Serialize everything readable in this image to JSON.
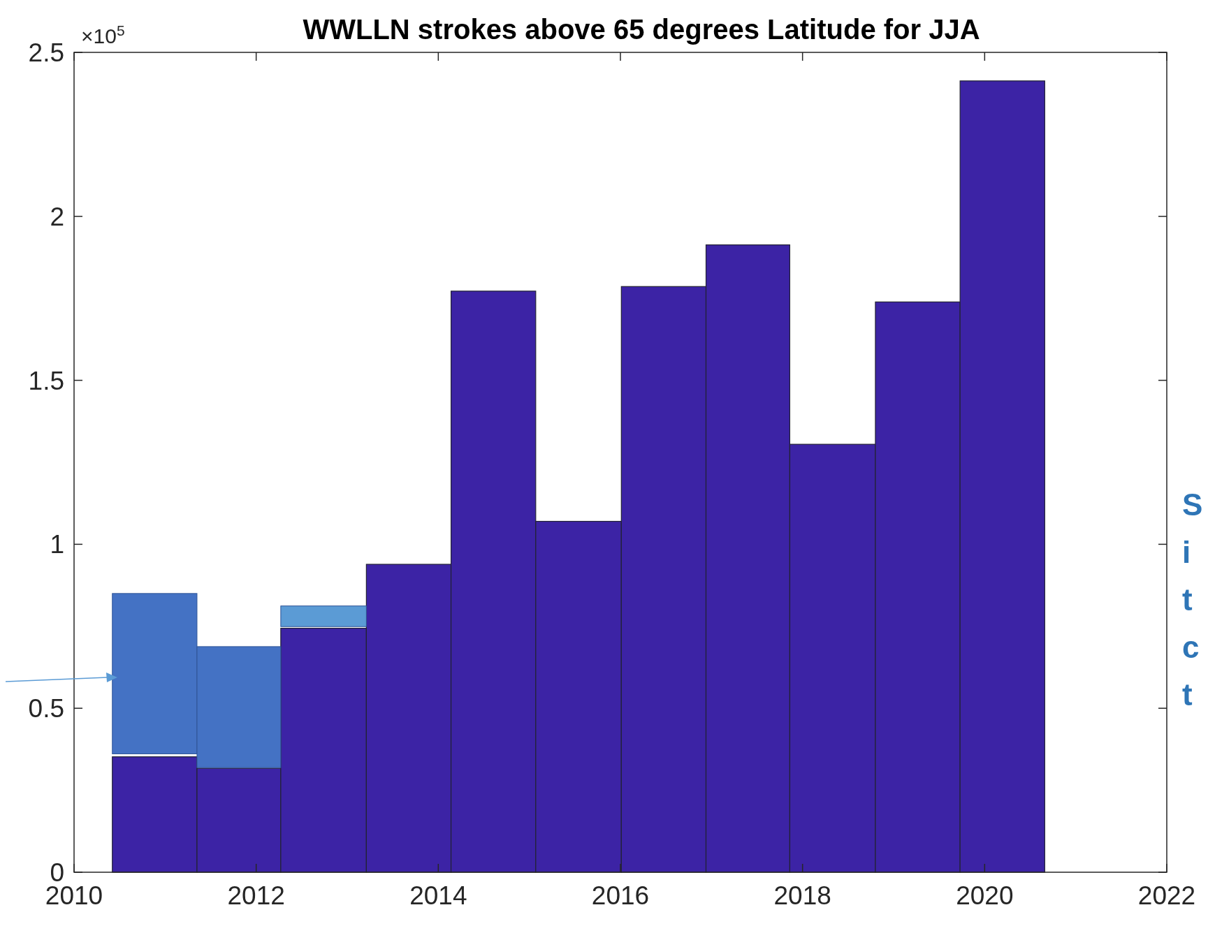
{
  "chart_data": {
    "type": "histogram",
    "title": "WWLLN strokes above 65 degrees Latitude for JJA",
    "bins": [
      2010.42,
      2011.35,
      2012.27,
      2013.21,
      2014.14,
      2015.07,
      2016.01,
      2016.94,
      2017.86,
      2018.8,
      2019.73,
      2020.66
    ],
    "series": [
      {
        "color": "#3c23a5",
        "values": [
          0.352,
          0.317,
          0.744,
          0.939,
          1.772,
          1.07,
          1.786,
          1.913,
          1.305,
          1.739,
          2.413
        ]
      },
      {
        "colors": [
          "#4472c4",
          "#4472c4",
          "#5b9bd5",
          null,
          null,
          null,
          null,
          null,
          null,
          null,
          null
        ],
        "base": [
          0.361,
          0.319,
          0.749,
          null,
          null,
          null,
          null,
          null,
          null,
          null,
          null
        ],
        "values": [
          0.489,
          0.369,
          0.063,
          null,
          null,
          null,
          null,
          null,
          null,
          null,
          null
        ]
      }
    ],
    "xlim": [
      2010,
      2022
    ],
    "xticks": [
      2010,
      2012,
      2014,
      2016,
      2018,
      2020,
      2022
    ],
    "ylim": [
      0,
      2.5
    ],
    "yticks": [
      0,
      0.5,
      1,
      1.5,
      2,
      2.5
    ],
    "annotations": [
      "×10$^{5}$",
      "S",
      "i",
      "t",
      "c",
      "t"
    ],
    "grid": false
  }
}
